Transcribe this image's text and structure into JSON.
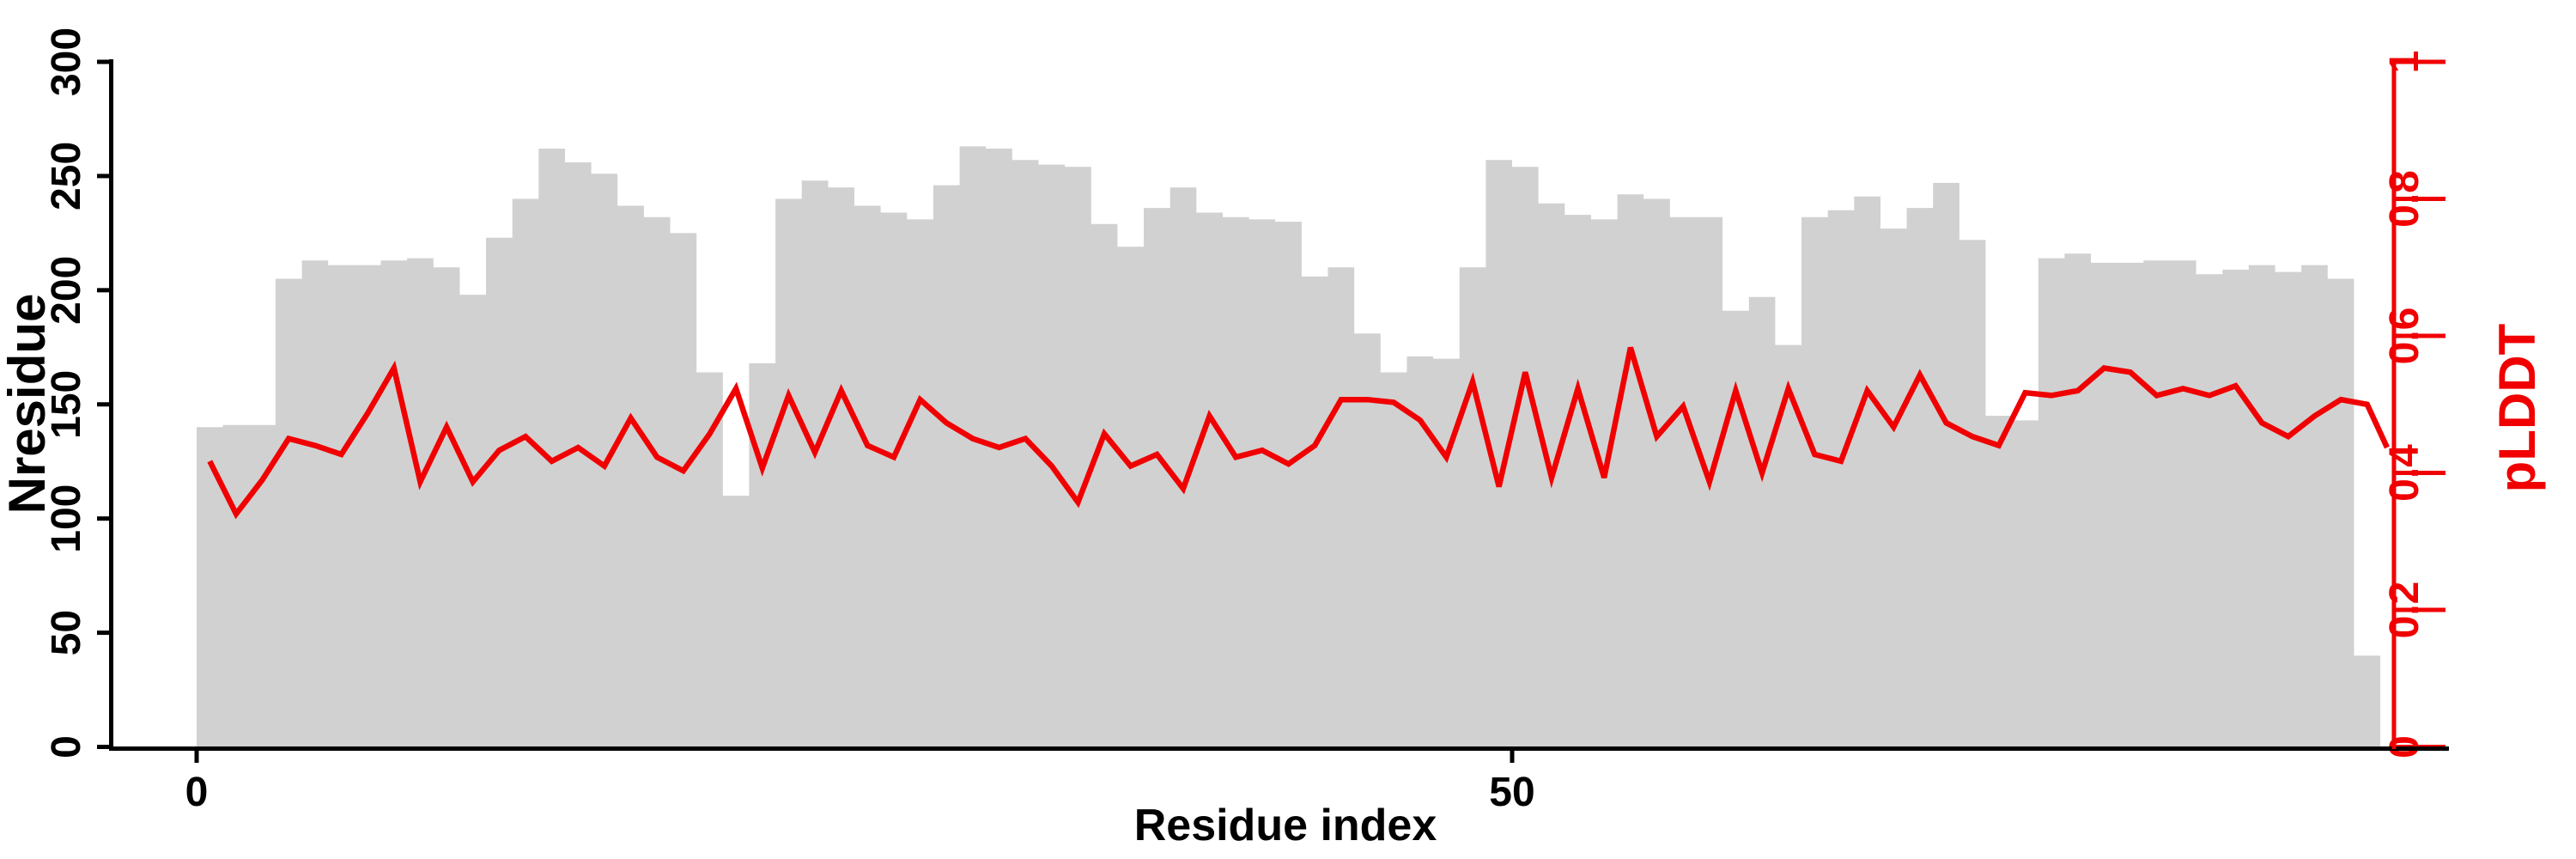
{
  "chart_data": {
    "type": "bar",
    "overlay": "line",
    "title": "",
    "xlabel": "Residue index",
    "ylabel_left": "Nresidue",
    "ylabel_right": "pLDDT",
    "x_axis": {
      "tick_labels": [
        "0",
        "50"
      ],
      "tick_values": [
        0,
        50
      ],
      "range_residues": [
        0,
        83
      ]
    },
    "left_axis": {
      "tick_labels": [
        "0",
        "50",
        "100",
        "150",
        "200",
        "250",
        "300"
      ],
      "tick_values": [
        0,
        50,
        100,
        150,
        200,
        250,
        300
      ],
      "ylim": [
        0,
        300
      ]
    },
    "right_axis": {
      "tick_labels": [
        "0",
        "0.2",
        "0.4",
        "0.6",
        "0.8",
        "1"
      ],
      "tick_values": [
        0,
        0.2,
        0.4,
        0.6,
        0.8,
        1
      ],
      "ylim": [
        0,
        1
      ]
    },
    "grid": "off",
    "legend": "none",
    "series": [
      {
        "name": "Nresidue",
        "kind": "bar",
        "values": [
          140,
          141,
          141,
          205,
          213,
          211,
          211,
          213,
          214,
          210,
          198,
          223,
          240,
          262,
          256,
          251,
          237,
          232,
          225,
          164,
          110,
          168,
          240,
          248,
          245,
          237,
          234,
          231,
          246,
          263,
          262,
          257,
          255,
          254,
          229,
          219,
          236,
          245,
          234,
          232,
          231,
          230,
          206,
          210,
          181,
          164,
          171,
          170,
          210,
          257,
          254,
          238,
          233,
          231,
          242,
          240,
          232,
          232,
          191,
          197,
          176,
          232,
          235,
          241,
          227,
          236,
          247,
          222,
          145,
          143,
          214,
          216,
          212,
          212,
          213,
          213,
          207,
          209,
          211,
          208,
          211,
          205,
          40
        ]
      },
      {
        "name": "pLDDT",
        "kind": "line",
        "values": [
          0.417,
          0.34,
          0.39,
          0.45,
          0.44,
          0.427,
          0.487,
          0.553,
          0.387,
          0.467,
          0.387,
          0.433,
          0.453,
          0.417,
          0.437,
          0.41,
          0.48,
          0.423,
          0.403,
          0.457,
          0.523,
          0.407,
          0.513,
          0.43,
          0.52,
          0.44,
          0.423,
          0.507,
          0.473,
          0.45,
          0.437,
          0.45,
          0.41,
          0.357,
          0.457,
          0.41,
          0.427,
          0.377,
          0.483,
          0.423,
          0.433,
          0.413,
          0.44,
          0.507,
          0.507,
          0.503,
          0.477,
          0.423,
          0.533,
          0.38,
          0.547,
          0.393,
          0.523,
          0.393,
          0.583,
          0.453,
          0.497,
          0.387,
          0.52,
          0.4,
          0.523,
          0.427,
          0.417,
          0.52,
          0.467,
          0.543,
          0.473,
          0.453,
          0.44,
          0.517,
          0.513,
          0.52,
          0.553,
          0.547,
          0.513,
          0.523,
          0.513,
          0.527,
          0.473,
          0.453,
          0.483,
          0.507,
          0.5
        ],
        "end_tail_value": 0.437
      }
    ],
    "colors": {
      "bar_fill": "#d1d1d1",
      "line": "#f00000",
      "right_axis": "#f00000",
      "left_axis": "#000000",
      "background": "#ffffff"
    }
  }
}
